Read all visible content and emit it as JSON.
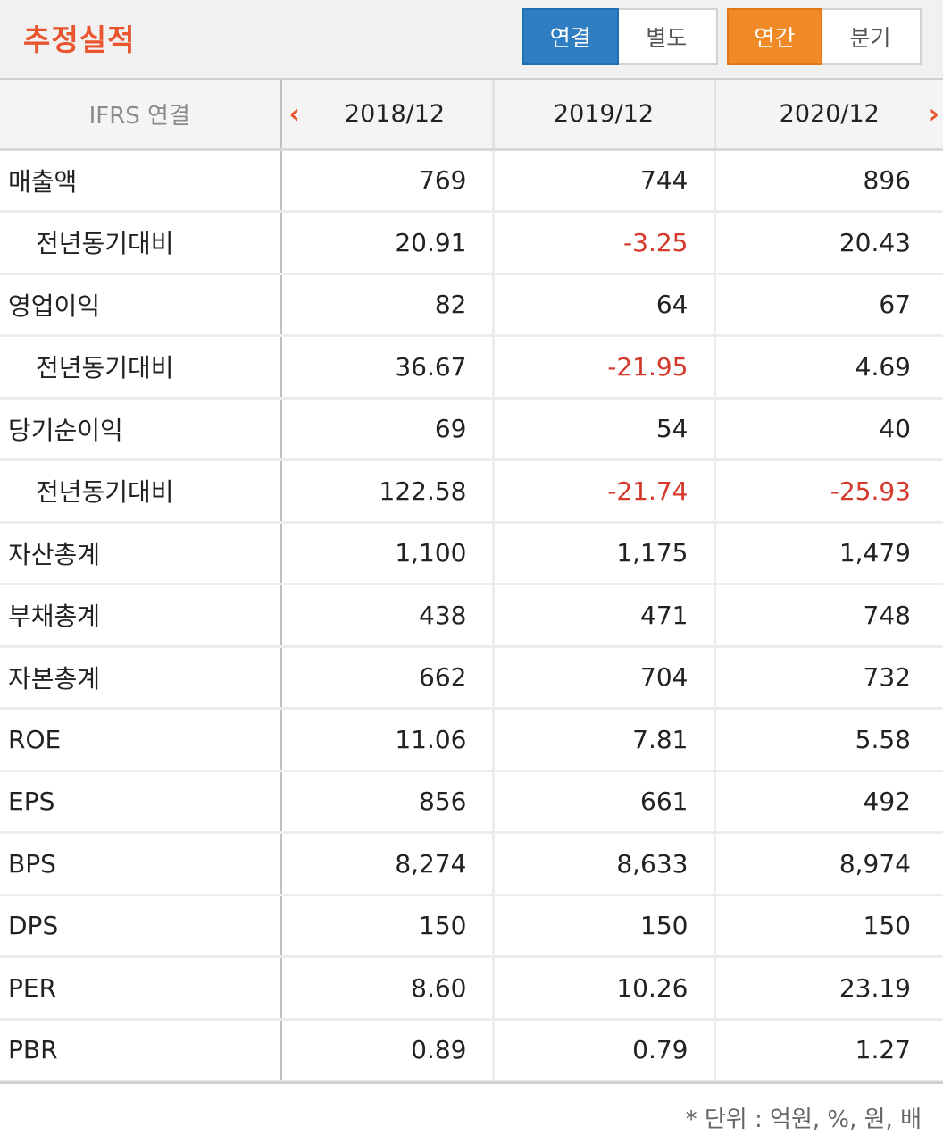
{
  "header": {
    "title": "추정실적",
    "group_a": [
      "연결",
      "별도"
    ],
    "group_b": [
      "연간",
      "분기"
    ],
    "colors": {
      "title": "#e8552e",
      "blue": "#2f7ec2",
      "orange": "#ef8a26",
      "negative": "#d33a2c"
    }
  },
  "table": {
    "label_header": "IFRS 연결",
    "columns": [
      "2018/12",
      "2019/12",
      "2020/12"
    ],
    "prev_icon": "chevron-left-icon",
    "next_icon": "chevron-right-icon",
    "rows": [
      {
        "label": "매출액",
        "sub": false,
        "values": [
          "769",
          "744",
          "896"
        ]
      },
      {
        "label": "전년동기대비",
        "sub": true,
        "values": [
          "20.91",
          "-3.25",
          "20.43"
        ]
      },
      {
        "label": "영업이익",
        "sub": false,
        "values": [
          "82",
          "64",
          "67"
        ]
      },
      {
        "label": "전년동기대비",
        "sub": true,
        "values": [
          "36.67",
          "-21.95",
          "4.69"
        ]
      },
      {
        "label": "당기순이익",
        "sub": false,
        "values": [
          "69",
          "54",
          "40"
        ]
      },
      {
        "label": "전년동기대비",
        "sub": true,
        "values": [
          "122.58",
          "-21.74",
          "-25.93"
        ]
      },
      {
        "label": "자산총계",
        "sub": false,
        "values": [
          "1,100",
          "1,175",
          "1,479"
        ]
      },
      {
        "label": "부채총계",
        "sub": false,
        "values": [
          "438",
          "471",
          "748"
        ]
      },
      {
        "label": "자본총계",
        "sub": false,
        "values": [
          "662",
          "704",
          "732"
        ]
      },
      {
        "label": "ROE",
        "sub": false,
        "values": [
          "11.06",
          "7.81",
          "5.58"
        ]
      },
      {
        "label": "EPS",
        "sub": false,
        "values": [
          "856",
          "661",
          "492"
        ]
      },
      {
        "label": "BPS",
        "sub": false,
        "values": [
          "8,274",
          "8,633",
          "8,974"
        ]
      },
      {
        "label": "DPS",
        "sub": false,
        "values": [
          "150",
          "150",
          "150"
        ]
      },
      {
        "label": "PER",
        "sub": false,
        "values": [
          "8.60",
          "10.26",
          "23.19"
        ]
      },
      {
        "label": "PBR",
        "sub": false,
        "values": [
          "0.89",
          "0.79",
          "1.27"
        ]
      }
    ]
  },
  "footer": {
    "unit_note": "* 단위 : 억원, %, 원, 배"
  }
}
